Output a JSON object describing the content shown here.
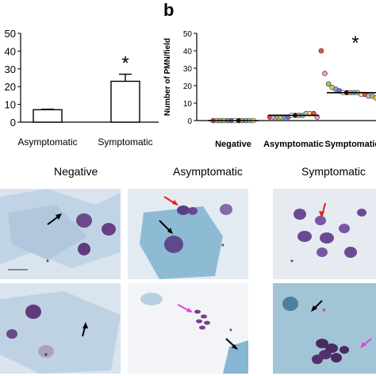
{
  "panel_b_letter": "b",
  "micrograph_headers": [
    "Negative",
    "Asymptomatic",
    "Symptomatic"
  ],
  "chart_data": [
    {
      "type": "bar",
      "panel": "a",
      "categories": [
        "Asymptomatic",
        "Symptomatic"
      ],
      "values": [
        7,
        23
      ],
      "errors": [
        0.3,
        4
      ],
      "ylim": [
        0,
        50
      ],
      "yticks": [
        "50",
        "40",
        "30",
        "20",
        "10",
        "0"
      ],
      "annotations": [
        "*"
      ],
      "bar_color": "#ffffff",
      "ylabel": "",
      "xlabel": ""
    },
    {
      "type": "scatter",
      "panel": "b",
      "categories": [
        "Negative",
        "Asymptomatic",
        "Symptomatic"
      ],
      "ylabel": "Number of PMN/field",
      "ylim": [
        0,
        50
      ],
      "yticks": [
        "50",
        "40",
        "30",
        "20",
        "10",
        "0"
      ],
      "medians": [
        0,
        3,
        16
      ],
      "annotations": [
        "*"
      ],
      "series": [
        {
          "category": "Negative",
          "values": [
            0,
            0,
            0,
            0,
            0,
            0,
            0,
            0,
            0,
            0,
            0,
            0
          ]
        },
        {
          "category": "Asymptomatic",
          "values": [
            2,
            2,
            2,
            2,
            2,
            2,
            3,
            3,
            3,
            3,
            4,
            4,
            4,
            2
          ]
        },
        {
          "category": "Symptomatic",
          "values": [
            40,
            27,
            21,
            19,
            18,
            17,
            16,
            16,
            16,
            16,
            16,
            15,
            15,
            14,
            14,
            13,
            13,
            16
          ]
        }
      ]
    }
  ]
}
